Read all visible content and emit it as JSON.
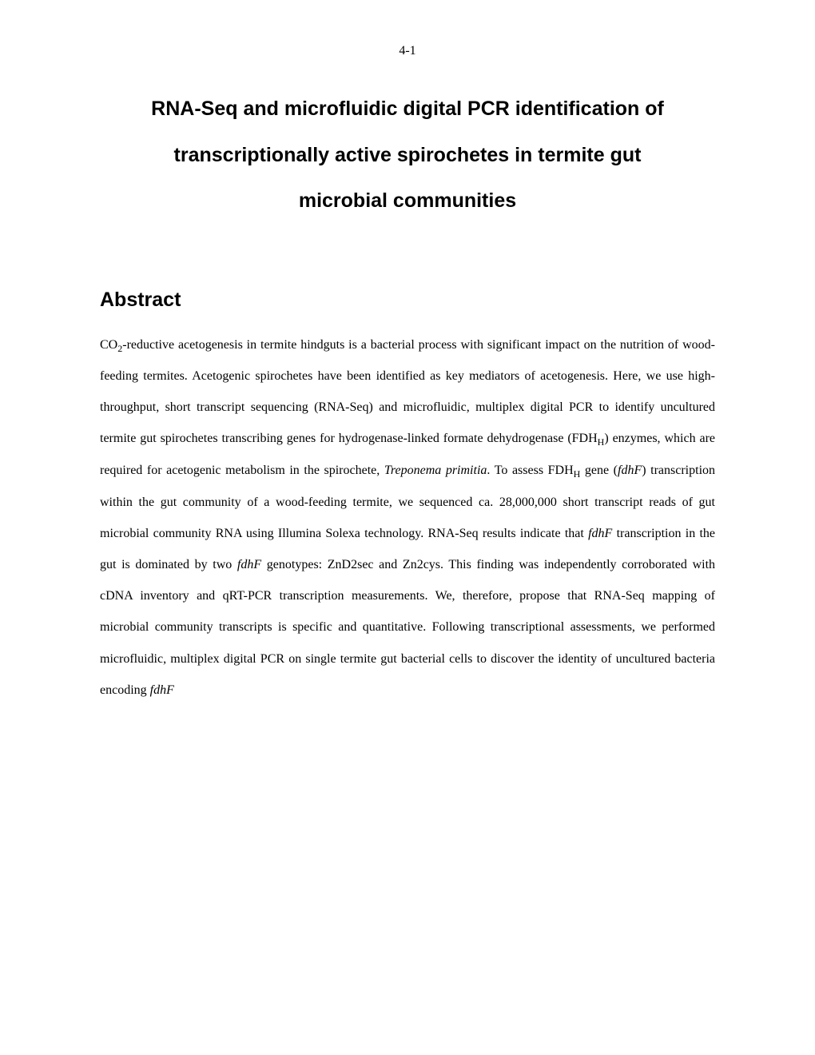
{
  "page": {
    "number": "4-1"
  },
  "title": {
    "line1": "RNA-Seq and microfluidic digital PCR identification of",
    "line2": "transcriptionally active spirochetes in termite gut",
    "line3": "microbial communities"
  },
  "abstract": {
    "heading": "Abstract",
    "body_parts": {
      "p1": "CO",
      "p2": "2",
      "p3": "-reductive acetogenesis in termite hindguts is a bacterial process with significant impact on the nutrition of wood-feeding termites. Acetogenic spirochetes have been identified as key mediators of acetogenesis. Here, we use high-throughput, short transcript sequencing (RNA-Seq) and microfluidic, multiplex digital PCR to identify uncultured termite gut spirochetes transcribing genes for hydrogenase-linked formate dehydrogenase (FDH",
      "p4": "H",
      "p5": ") enzymes, which are required for acetogenic metabolism in the spirochete, ",
      "p6": "Treponema primitia",
      "p7": ". To assess FDH",
      "p8": "H",
      "p9": " gene (",
      "p10": "fdhF",
      "p11": ") transcription within the gut community of a wood-feeding termite, we sequenced ca. 28,000,000 short transcript reads of gut microbial community RNA using Illumina Solexa technology. RNA-Seq results indicate that ",
      "p12": "fdhF",
      "p13": " transcription in the gut is dominated by two ",
      "p14": "fdhF",
      "p15": " genotypes: ZnD2sec and Zn2cys. This finding was independently corroborated with cDNA inventory and qRT-PCR transcription measurements. We, therefore, propose that RNA-Seq mapping of microbial community transcripts is specific and quantitative. Following transcriptional assessments, we performed microfluidic, multiplex digital PCR on single termite gut bacterial cells to discover the identity of uncultured bacteria encoding ",
      "p16": "fdhF"
    }
  },
  "styling": {
    "background_color": "#ffffff",
    "text_color": "#000000",
    "title_font": "Arial",
    "body_font": "Times New Roman",
    "title_fontsize": 25,
    "heading_fontsize": 25,
    "body_fontsize": 16,
    "page_number_fontsize": 16
  }
}
